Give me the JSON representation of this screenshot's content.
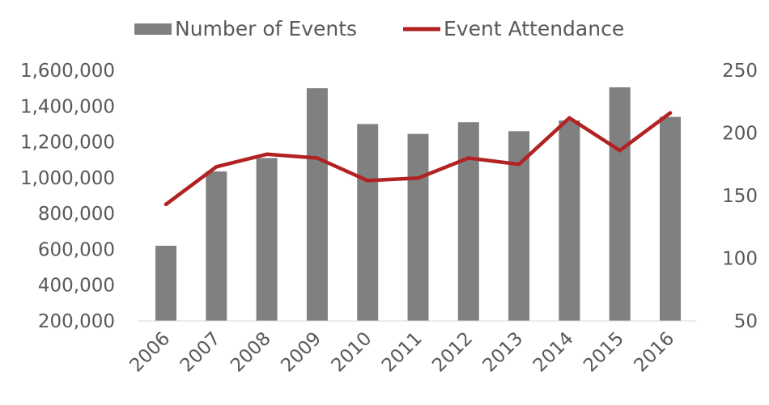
{
  "chart_data": {
    "type": "bar",
    "categories": [
      "2006",
      "2007",
      "2008",
      "2009",
      "2010",
      "2011",
      "2012",
      "2013",
      "2014",
      "2015",
      "2016"
    ],
    "series": [
      {
        "name": "Number of Events",
        "type": "bar",
        "axis": "left",
        "color": "#808080",
        "values": [
          620000,
          1035000,
          1110000,
          1500000,
          1300000,
          1245000,
          1310000,
          1260000,
          1320000,
          1505000,
          1340000
        ]
      },
      {
        "name": "Event Attendance",
        "type": "line",
        "axis": "right",
        "color": "#B22222",
        "values": [
          143,
          173,
          183,
          180,
          162,
          164,
          180,
          175,
          212,
          186,
          216
        ]
      }
    ],
    "y_left": {
      "min": 200000,
      "max": 1600000,
      "ticks": [
        "200,000",
        "400,000",
        "600,000",
        "800,000",
        "1,000,000",
        "1,200,000",
        "1,400,000",
        "1,600,000"
      ],
      "tick_values": [
        200000,
        400000,
        600000,
        800000,
        1000000,
        1200000,
        1400000,
        1600000
      ]
    },
    "y_right": {
      "min": 50,
      "max": 250,
      "ticks": [
        "50",
        "100",
        "150",
        "200",
        "250"
      ],
      "tick_values": [
        50,
        100,
        150,
        200,
        250
      ]
    },
    "legend_position": "top-center",
    "grid": false
  }
}
